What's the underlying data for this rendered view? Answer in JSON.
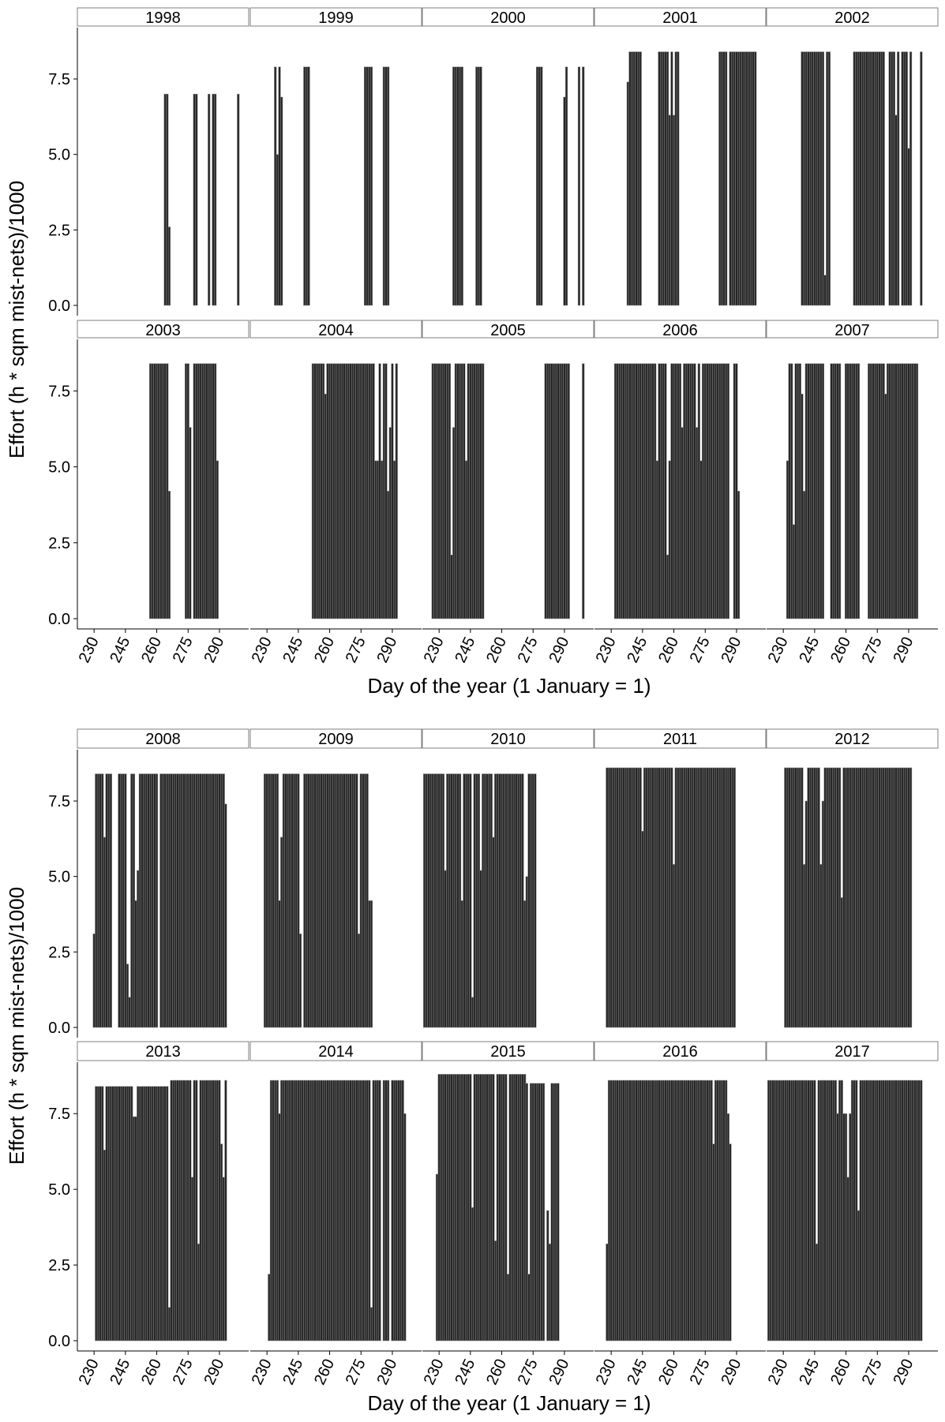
{
  "figure": {
    "ylabel": "Effort (h * sqm mist-nets)/1000",
    "xlabel": "Day of the year (1 January = 1)",
    "yticks": [
      "0.0",
      "2.5",
      "5.0",
      "7.5"
    ],
    "xticks": [
      "230",
      "245",
      "260",
      "275",
      "290"
    ]
  },
  "chart_data": [
    {
      "type": "bar",
      "title": "",
      "xlabel": "Day of the year (1 January = 1)",
      "ylabel": "Effort (h * sqm mist-nets)/1000",
      "xlim": [
        222,
        304
      ],
      "ylim": [
        0,
        9.2
      ],
      "xticks": [
        230,
        245,
        260,
        275,
        290
      ],
      "yticks": [
        0,
        2.5,
        5,
        7.5
      ],
      "grid": false,
      "facets": [
        {
          "label": "1998",
          "runs": [
            [
              264,
              265,
              7.0
            ],
            [
              266,
              266,
              2.6
            ],
            [
              278,
              279,
              7.0
            ],
            [
              285,
              285,
              7.0
            ],
            [
              287,
              288,
              7.0
            ],
            [
              299,
              299,
              7.0
            ]
          ]
        },
        {
          "label": "1999",
          "runs": [
            [
              234,
              234,
              7.9
            ],
            [
              235,
              235,
              5.0
            ],
            [
              236,
              236,
              7.9
            ],
            [
              237,
              237,
              6.9
            ],
            [
              248,
              250,
              7.9
            ],
            [
              277,
              280,
              7.9
            ],
            [
              286,
              288,
              7.9
            ]
          ]
        },
        {
          "label": "2000",
          "runs": [
            [
              237,
              241,
              7.9
            ],
            [
              248,
              250,
              7.9
            ],
            [
              277,
              279,
              7.9
            ],
            [
              290,
              290,
              6.9
            ],
            [
              291,
              291,
              7.9
            ],
            [
              297,
              297,
              7.9
            ],
            [
              299,
              299,
              7.9
            ]
          ]
        },
        {
          "label": "2001",
          "runs": [
            [
              238,
              238,
              7.4
            ],
            [
              239,
              244,
              8.4
            ],
            [
              253,
              257,
              8.4
            ],
            [
              258,
              258,
              6.3
            ],
            [
              259,
              259,
              8.4
            ],
            [
              260,
              260,
              6.3
            ],
            [
              261,
              262,
              8.4
            ],
            [
              282,
              285,
              8.4
            ],
            [
              287,
              299,
              8.4
            ]
          ]
        },
        {
          "label": "2002",
          "runs": [
            [
              239,
              249,
              8.4
            ],
            [
              250,
              250,
              1.0
            ],
            [
              251,
              252,
              8.4
            ],
            [
              264,
              269,
              8.4
            ],
            [
              270,
              278,
              8.4
            ],
            [
              281,
              283,
              8.4
            ],
            [
              284,
              284,
              6.3
            ],
            [
              285,
              285,
              8.4
            ],
            [
              287,
              289,
              8.4
            ],
            [
              290,
              290,
              5.2
            ],
            [
              291,
              291,
              8.4
            ],
            [
              296,
              296,
              8.4
            ]
          ]
        },
        {
          "label": "2003",
          "runs": [
            [
              257,
              265,
              8.4
            ],
            [
              266,
              266,
              4.2
            ],
            [
              274,
              275,
              8.4
            ],
            [
              276,
              276,
              6.3
            ],
            [
              278,
              288,
              8.4
            ],
            [
              289,
              289,
              5.2
            ]
          ]
        },
        {
          "label": "2004",
          "runs": [
            [
              252,
              257,
              8.4
            ],
            [
              258,
              258,
              7.4
            ],
            [
              259,
              281,
              8.4
            ],
            [
              282,
              283,
              5.2
            ],
            [
              284,
              284,
              8.4
            ],
            [
              285,
              285,
              5.2
            ],
            [
              286,
              287,
              8.4
            ],
            [
              288,
              288,
              4.2
            ],
            [
              289,
              289,
              6.3
            ],
            [
              290,
              290,
              8.4
            ],
            [
              291,
              291,
              5.2
            ],
            [
              292,
              292,
              8.4
            ]
          ]
        },
        {
          "label": "2005",
          "runs": [
            [
              227,
              235,
              8.4
            ],
            [
              236,
              236,
              2.1
            ],
            [
              237,
              237,
              6.3
            ],
            [
              238,
              242,
              8.4
            ],
            [
              243,
              243,
              5.2
            ],
            [
              244,
              251,
              8.4
            ],
            [
              281,
              292,
              8.4
            ],
            [
              299,
              299,
              8.4
            ]
          ]
        },
        {
          "label": "2006",
          "runs": [
            [
              232,
              251,
              8.4
            ],
            [
              252,
              252,
              5.2
            ],
            [
              253,
              256,
              8.4
            ],
            [
              257,
              257,
              2.1
            ],
            [
              258,
              258,
              5.2
            ],
            [
              259,
              263,
              8.4
            ],
            [
              264,
              264,
              6.3
            ],
            [
              265,
              270,
              8.4
            ],
            [
              271,
              271,
              6.3
            ],
            [
              272,
              272,
              8.4
            ],
            [
              273,
              273,
              5.2
            ],
            [
              274,
              285,
              8.4
            ],
            [
              286,
              286,
              8.4
            ],
            [
              289,
              290,
              8.4
            ],
            [
              291,
              291,
              4.2
            ]
          ]
        },
        {
          "label": "2007",
          "runs": [
            [
              232,
              232,
              5.2
            ],
            [
              233,
              234,
              8.4
            ],
            [
              235,
              235,
              3.1
            ],
            [
              236,
              238,
              8.4
            ],
            [
              239,
              239,
              7.4
            ],
            [
              240,
              240,
              4.2
            ],
            [
              241,
              249,
              8.4
            ],
            [
              253,
              257,
              8.4
            ],
            [
              260,
              266,
              8.4
            ],
            [
              271,
              278,
              8.4
            ],
            [
              279,
              279,
              7.4
            ],
            [
              280,
              294,
              8.4
            ]
          ]
        },
        {
          "label": "2008",
          "runs": [
            [
              230,
              230,
              3.1
            ],
            [
              231,
              234,
              8.4
            ],
            [
              235,
              235,
              6.3
            ],
            [
              236,
              238,
              8.4
            ],
            [
              242,
              245,
              8.4
            ],
            [
              246,
              246,
              2.1
            ],
            [
              247,
              247,
              1.0
            ],
            [
              248,
              249,
              8.4
            ],
            [
              250,
              250,
              4.2
            ],
            [
              251,
              251,
              5.2
            ],
            [
              252,
              260,
              8.4
            ],
            [
              262,
              292,
              8.4
            ],
            [
              293,
              293,
              7.4
            ]
          ]
        },
        {
          "label": "2009",
          "runs": [
            [
              229,
              235,
              8.4
            ],
            [
              236,
              236,
              4.2
            ],
            [
              237,
              237,
              6.3
            ],
            [
              238,
              243,
              8.4
            ],
            [
              244,
              245,
              8.4
            ],
            [
              246,
              246,
              3.1
            ],
            [
              248,
              273,
              8.4
            ],
            [
              274,
              274,
              3.1
            ],
            [
              275,
              278,
              8.4
            ],
            [
              279,
              280,
              4.2
            ]
          ]
        },
        {
          "label": "2010",
          "runs": [
            [
              223,
              232,
              8.4
            ],
            [
              233,
              233,
              5.2
            ],
            [
              234,
              240,
              8.4
            ],
            [
              241,
              241,
              4.2
            ],
            [
              242,
              245,
              8.4
            ],
            [
              246,
              246,
              1.0
            ],
            [
              247,
              249,
              8.4
            ],
            [
              250,
              250,
              5.2
            ],
            [
              251,
              255,
              8.4
            ],
            [
              256,
              256,
              6.3
            ],
            [
              257,
              270,
              8.4
            ],
            [
              271,
              271,
              4.2
            ],
            [
              272,
              272,
              5.0
            ],
            [
              273,
              276,
              8.4
            ]
          ]
        },
        {
          "label": "2011",
          "runs": [
            [
              228,
              244,
              8.6
            ],
            [
              245,
              245,
              6.5
            ],
            [
              246,
              259,
              8.6
            ],
            [
              260,
              260,
              5.4
            ],
            [
              261,
              289,
              8.6
            ]
          ]
        },
        {
          "label": "2012",
          "runs": [
            [
              231,
              239,
              8.6
            ],
            [
              240,
              240,
              5.4
            ],
            [
              241,
              241,
              7.5
            ],
            [
              242,
              247,
              8.6
            ],
            [
              248,
              248,
              5.4
            ],
            [
              249,
              249,
              7.5
            ],
            [
              250,
              257,
              8.6
            ],
            [
              258,
              258,
              4.3
            ],
            [
              259,
              266,
              8.6
            ],
            [
              267,
              279,
              8.6
            ],
            [
              280,
              291,
              8.6
            ]
          ]
        },
        {
          "label": "2013",
          "runs": [
            [
              231,
              234,
              8.4
            ],
            [
              235,
              235,
              6.3
            ],
            [
              236,
              248,
              8.4
            ],
            [
              249,
              250,
              7.4
            ],
            [
              251,
              251,
              8.4
            ],
            [
              252,
              265,
              8.4
            ],
            [
              266,
              266,
              1.1
            ],
            [
              267,
              276,
              8.6
            ],
            [
              277,
              277,
              5.4
            ],
            [
              278,
              279,
              8.6
            ],
            [
              280,
              280,
              3.2
            ],
            [
              281,
              290,
              8.6
            ],
            [
              291,
              291,
              6.5
            ],
            [
              292,
              292,
              5.4
            ],
            [
              293,
              293,
              8.6
            ]
          ]
        },
        {
          "label": "2014",
          "runs": [
            [
              231,
              231,
              2.2
            ],
            [
              232,
              235,
              8.6
            ],
            [
              236,
              236,
              7.5
            ],
            [
              237,
              279,
              8.6
            ],
            [
              280,
              280,
              1.1
            ],
            [
              281,
              284,
              8.6
            ],
            [
              286,
              288,
              8.6
            ],
            [
              290,
              295,
              8.6
            ],
            [
              296,
              296,
              7.5
            ]
          ]
        },
        {
          "label": "2015",
          "runs": [
            [
              229,
              229,
              5.5
            ],
            [
              230,
              245,
              8.8
            ],
            [
              246,
              246,
              4.4
            ],
            [
              247,
              256,
              8.8
            ],
            [
              257,
              257,
              3.3
            ],
            [
              258,
              262,
              8.8
            ],
            [
              263,
              263,
              2.2
            ],
            [
              264,
              271,
              8.8
            ],
            [
              272,
              272,
              8.5
            ],
            [
              273,
              273,
              2.2
            ],
            [
              274,
              280,
              8.5
            ],
            [
              282,
              282,
              4.3
            ],
            [
              283,
              283,
              3.2
            ],
            [
              284,
              287,
              8.5
            ]
          ]
        },
        {
          "label": "2016",
          "runs": [
            [
              228,
              228,
              3.2
            ],
            [
              229,
              278,
              8.6
            ],
            [
              279,
              279,
              6.5
            ],
            [
              280,
              285,
              8.6
            ],
            [
              286,
              286,
              7.5
            ],
            [
              287,
              287,
              6.5
            ]
          ]
        },
        {
          "label": "2017",
          "runs": [
            [
              223,
              245,
              8.6
            ],
            [
              246,
              246,
              3.2
            ],
            [
              247,
              255,
              8.6
            ],
            [
              256,
              256,
              7.5
            ],
            [
              257,
              258,
              8.6
            ],
            [
              259,
              260,
              7.5
            ],
            [
              261,
              261,
              5.4
            ],
            [
              262,
              262,
              7.5
            ],
            [
              263,
              265,
              8.6
            ],
            [
              266,
              266,
              4.3
            ],
            [
              267,
              269,
              8.6
            ],
            [
              270,
              296,
              8.6
            ]
          ]
        }
      ]
    }
  ]
}
